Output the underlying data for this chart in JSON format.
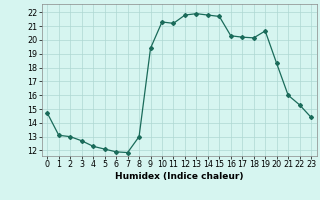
{
  "x": [
    0,
    1,
    2,
    3,
    4,
    5,
    6,
    7,
    8,
    9,
    10,
    11,
    12,
    13,
    14,
    15,
    16,
    17,
    18,
    19,
    20,
    21,
    22,
    23
  ],
  "y": [
    14.7,
    13.1,
    13.0,
    12.7,
    12.3,
    12.1,
    11.9,
    11.85,
    13.0,
    19.4,
    21.3,
    21.2,
    21.8,
    21.9,
    21.8,
    21.7,
    20.3,
    20.2,
    20.15,
    20.65,
    18.3,
    16.0,
    15.3,
    14.4
  ],
  "line_color": "#1a6b5a",
  "marker": "D",
  "markersize": 2.0,
  "linewidth": 0.9,
  "bg_color": "#d6f5f0",
  "grid_color": "#aed8d2",
  "xlabel": "Humidex (Indice chaleur)",
  "ylabel_ticks": [
    12,
    13,
    14,
    15,
    16,
    17,
    18,
    19,
    20,
    21,
    22
  ],
  "xlim": [
    -0.5,
    23.5
  ],
  "ylim": [
    11.6,
    22.6
  ],
  "xlabel_fontsize": 6.5,
  "tick_fontsize": 5.8
}
